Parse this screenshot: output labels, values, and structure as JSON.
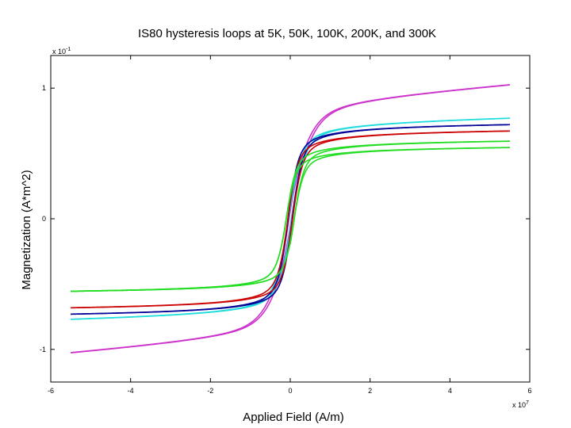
{
  "chart_data": {
    "type": "line",
    "title": "IS80 hysteresis loops at 5K, 50K, 100K, 200K, and 300K",
    "xlabel": "Applied Field (A/m)",
    "ylabel": "Magnetization (A*m^2)",
    "x_multiplier": "x 10",
    "x_exponent": "7",
    "y_multiplier": "x 10",
    "y_exponent": "-1",
    "xlim": [
      -6,
      6
    ],
    "ylim": [
      -1.25,
      1.25
    ],
    "x_ticks": [
      -6,
      -4,
      -2,
      0,
      2,
      4,
      6
    ],
    "x_tick_labels": [
      "-6",
      "-4",
      "-2",
      "0",
      "2",
      "4",
      "6"
    ],
    "y_ticks": [
      -1,
      0,
      1
    ],
    "y_tick_labels": [
      "-1",
      "0",
      "1"
    ],
    "grid": false,
    "series": [
      {
        "color": "#cc33cc",
        "ms": 1.05,
        "ms_neg": -1.05,
        "hc": 0.03,
        "shape": "slow"
      },
      {
        "color": "#22dddd",
        "ms": 0.79,
        "ms_neg": -0.79,
        "hc": 0.04,
        "shape": "mid"
      },
      {
        "color": "#000099",
        "ms": 0.74,
        "ms_neg": -0.75,
        "hc": 0.05,
        "shape": "sharp"
      },
      {
        "color": "#cc0000",
        "ms": 0.69,
        "ms_neg": -0.7,
        "hc": 0.06,
        "shape": "sharp"
      },
      {
        "color": "#22dd22",
        "ms": 0.61,
        "ms_neg": -0.57,
        "hc": 0.1,
        "shape": "green_upper"
      },
      {
        "color": "#22dd22",
        "ms": 0.56,
        "ms_neg": -0.57,
        "hc": 0.1,
        "shape": "green_lower"
      }
    ]
  }
}
